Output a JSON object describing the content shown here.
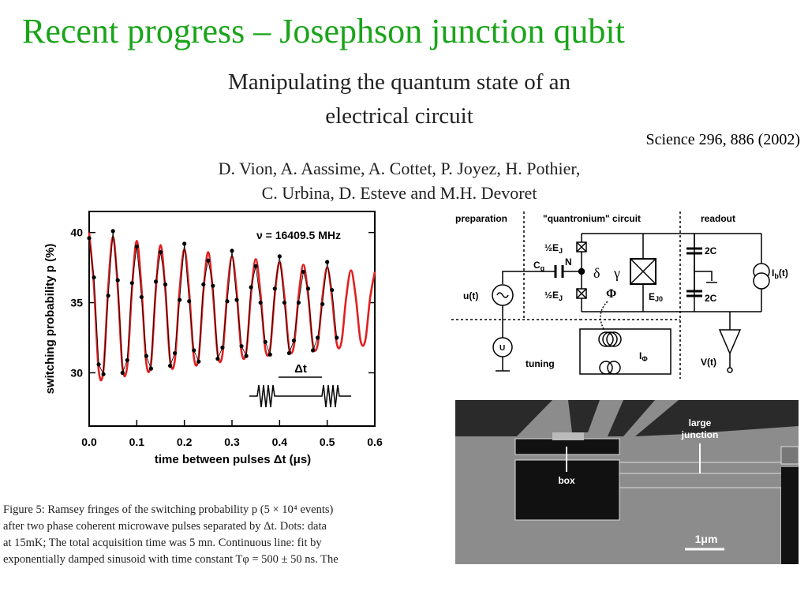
{
  "slide_title": "Recent progress – Josephson junction qubit",
  "paper": {
    "title": [
      "Manipulating the quantum state of an",
      "electrical circuit"
    ],
    "citation": "Science 296, 886 (2002)",
    "authors": [
      "D. Vion, A. Aassime, A. Cottet, P. Joyez, H. Pothier,",
      "C. Urbina, D. Esteve and M.H. Devoret"
    ]
  },
  "chart_data": {
    "type": "line",
    "ylabel": "switching probability p (%)",
    "xlabel": "time between pulses  Δt (μs)",
    "annotation": "ν = 16409.5 MHz",
    "inset_label": "Δt",
    "xlim": [
      0,
      0.6
    ],
    "ylim": [
      26.2,
      41.5
    ],
    "xticks": [
      {
        "value": 0,
        "label": "0.0"
      },
      0.1,
      0.2,
      0.3,
      0.4,
      0.5,
      0.6
    ],
    "yticks": [
      30,
      35,
      40
    ],
    "series": [
      {
        "color": "#e02020",
        "x": [
          0,
          0.01,
          0.02,
          0.03,
          0.04,
          0.05,
          0.06,
          0.07,
          0.08,
          0.09,
          0.1,
          0.11,
          0.12,
          0.13,
          0.14,
          0.15,
          0.16,
          0.17,
          0.18,
          0.19,
          0.2,
          0.21,
          0.22,
          0.23,
          0.24,
          0.25,
          0.26,
          0.27,
          0.28,
          0.29,
          0.3,
          0.31,
          0.32,
          0.33,
          0.34,
          0.35,
          0.36,
          0.37,
          0.38,
          0.39,
          0.4,
          0.41,
          0.42,
          0.43,
          0.44,
          0.45,
          0.46,
          0.47,
          0.48,
          0.49,
          0.5,
          0.51,
          0.52,
          0.53,
          0.54,
          0.55,
          0.56,
          0.57,
          0.58,
          0.59,
          0.6
        ],
        "values": [
          40.0,
          36.2,
          30.2,
          30.2,
          36.1,
          39.7,
          36.1,
          30.4,
          30.5,
          36.0,
          39.4,
          36.0,
          30.7,
          30.7,
          35.9,
          39.1,
          35.9,
          30.9,
          30.9,
          35.9,
          38.8,
          35.8,
          31.1,
          31.1,
          35.8,
          38.6,
          35.7,
          31.3,
          31.3,
          35.7,
          38.3,
          35.7,
          31.5,
          31.5,
          35.6,
          38.1,
          35.6,
          31.7,
          31.7,
          35.6,
          37.9,
          35.5,
          31.8,
          31.9,
          35.5,
          37.7,
          35.5,
          32.0,
          32.0,
          35.4,
          37.5,
          35.4,
          32.1,
          32.2,
          35.4,
          37.3,
          35.4,
          32.3,
          32.3,
          35.3,
          37.2
        ]
      },
      {
        "color": "#000000",
        "marker": "dot",
        "x": [
          0,
          0.01,
          0.02,
          0.03,
          0.04,
          0.05,
          0.06,
          0.07,
          0.08,
          0.09,
          0.1,
          0.11,
          0.12,
          0.13,
          0.14,
          0.15,
          0.16,
          0.17,
          0.18,
          0.19,
          0.2,
          0.21,
          0.22,
          0.23,
          0.24,
          0.25,
          0.26,
          0.27,
          0.28,
          0.29,
          0.3,
          0.31,
          0.32,
          0.33,
          0.34,
          0.35,
          0.36,
          0.37,
          0.38,
          0.39,
          0.4,
          0.41,
          0.42,
          0.43,
          0.44,
          0.45,
          0.46,
          0.47,
          0.48,
          0.49,
          0.5,
          0.51,
          0.52
        ],
        "values": [
          39.6,
          36.8,
          30.6,
          29.9,
          35.5,
          40.1,
          36.6,
          30.0,
          30.9,
          36.4,
          39.0,
          35.4,
          31.2,
          30.3,
          36.5,
          38.6,
          36.3,
          30.5,
          31.4,
          35.2,
          39.2,
          35.1,
          31.6,
          30.8,
          36.3,
          38.0,
          36.2,
          31.0,
          31.8,
          35.1,
          38.7,
          35.2,
          31.9,
          31.2,
          36.1,
          37.6,
          35.0,
          32.2,
          31.3,
          36.0,
          38.3,
          35.0,
          31.4,
          32.3,
          35.0,
          37.2,
          36.0,
          31.6,
          32.5,
          34.9,
          37.9,
          35.9,
          32.5
        ]
      }
    ]
  },
  "circuit": {
    "sections": [
      "preparation",
      "\"quantronium\" circuit",
      "readout"
    ],
    "half_ej_top": "½E",
    "half_ej_bottom": "½E",
    "ej_sub": "J",
    "cg": "C",
    "cg_sub": "g",
    "node": "N",
    "delta": "δ",
    "gamma": "γ",
    "ej0": "E",
    "ej0_sub": "J0",
    "phi": "Φ",
    "source": "u(t)",
    "u": "U",
    "tuning": "tuning",
    "i_phi": "I",
    "i_phi_sub": "Φ",
    "cap_top": "2C",
    "cap_bottom": "2C",
    "ib": "I",
    "ib_sub": "b",
    "ib_tail": "(t)",
    "vt": "V(t)"
  },
  "sem": {
    "large_junction": [
      "large",
      "junction"
    ],
    "box": "box",
    "scale": "1μm"
  },
  "caption": [
    "Figure 5:  Ramsey fringes of the switching probability p (5 × 10⁴ events)",
    "after two phase coherent microwave pulses separated by Δt.  Dots:  data",
    "at 15mK; The total acquisition time was 5 mn.  Continuous line:  fit by",
    "exponentially damped sinusoid with time constant Tφ = 500 ± 50 ns.  The"
  ]
}
